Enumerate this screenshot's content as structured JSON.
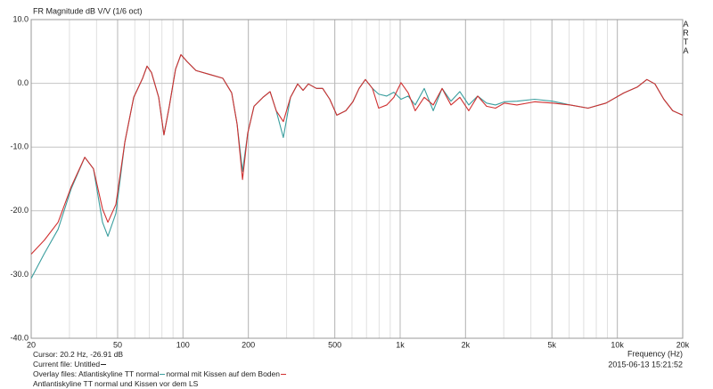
{
  "chart_data": {
    "type": "line",
    "title": "FR Magnitude dB V/V (1/6 oct)",
    "brand": "ARTA",
    "x_label": "Frequency (Hz)",
    "cursor": "Cursor: 20.2 Hz, -26.91 dB",
    "current_file": "Current file: Untitled",
    "overlay_label": "Overlay files:",
    "overlay_extra": "Antlantiskyline TT normal und Kissen vor dem LS",
    "timestamp": "2015-06-13  15:21:52",
    "log_x": true,
    "grid": true,
    "xlim": [
      20,
      20000
    ],
    "ylim": [
      -40,
      10
    ],
    "xticks": [
      20,
      50,
      100,
      200,
      500,
      {
        "value": 1000,
        "label": "1k"
      },
      {
        "value": 2000,
        "label": "2k"
      },
      {
        "value": 5000,
        "label": "5k"
      },
      {
        "value": 10000,
        "label": "10k"
      },
      {
        "value": 20000,
        "label": "20k"
      }
    ],
    "yticks": [
      {
        "value": -40,
        "label": "-40.0"
      },
      {
        "value": -30,
        "label": "-30.0"
      },
      {
        "value": -20,
        "label": "-20.0"
      },
      {
        "value": -10,
        "label": "-10.0"
      },
      {
        "value": 0,
        "label": "0.0"
      },
      {
        "value": 10,
        "label": "10.0"
      }
    ],
    "x": [
      20,
      23.0,
      26.6,
      30.6,
      35.3,
      38.7,
      42.6,
      45.1,
      49.1,
      54.0,
      59.3,
      65.2,
      68.3,
      71.6,
      77.3,
      81.7,
      86.5,
      92.4,
      97.8,
      104.5,
      114.8,
      132.4,
      152.5,
      167.6,
      177.5,
      188,
      198.7,
      212.4,
      233.5,
      251.8,
      268.7,
      289.8,
      312.6,
      337.3,
      357.3,
      377.8,
      411.6,
      439.6,
      474.2,
      510.9,
      562.1,
      605.8,
      647.1,
      691.6,
      745.4,
      796.2,
      867.2,
      935.3,
      1009,
      1089,
      1173,
      1291,
      1420,
      1560,
      1714,
      1883,
      2070,
      2275,
      2500,
      2748,
      3020,
      3447,
      4160,
      5024,
      6072,
      7333,
      8869,
      10716,
      12334,
      13680,
      14900,
      16370,
      17990,
      20000
    ],
    "series": [
      {
        "name": "Atlantiskyline TT normal",
        "color": "#3a9e9e",
        "values": [
          -30.6,
          -26.7,
          -22.9,
          -16.5,
          -11.6,
          -13.4,
          -21.8,
          -24.0,
          -20.4,
          -9.2,
          -2.2,
          0.8,
          2.7,
          1.7,
          -2.2,
          -8.1,
          -3.6,
          2.2,
          4.5,
          3.4,
          2.0,
          1.4,
          0.8,
          -1.5,
          -6.4,
          -13.8,
          -7.8,
          -3.6,
          -2.2,
          -1.3,
          -4.3,
          -8.5,
          -2.2,
          -0.1,
          -1.1,
          -0.1,
          -0.8,
          -0.8,
          -2.5,
          -5.0,
          -4.3,
          -2.9,
          -0.8,
          0.6,
          -0.8,
          -1.7,
          -2.0,
          -1.4,
          -2.5,
          -2.0,
          -3.4,
          -0.8,
          -4.3,
          -0.8,
          -2.8,
          -1.3,
          -3.4,
          -2.0,
          -3.1,
          -3.4,
          -2.9,
          -2.8,
          -2.5,
          -2.8,
          -3.4,
          -3.9,
          -3.1,
          -1.5,
          -0.6,
          0.6,
          -0.1,
          -2.5,
          -4.3,
          -5.0
        ]
      },
      {
        "name": "normal mit Kissen auf dem Boden",
        "color": "#d03030",
        "values": [
          -26.8,
          -24.6,
          -21.8,
          -16.2,
          -11.6,
          -13.4,
          -19.7,
          -21.8,
          -19.0,
          -9.2,
          -2.2,
          0.8,
          2.7,
          1.7,
          -2.2,
          -8.1,
          -3.6,
          2.2,
          4.5,
          3.4,
          2.0,
          1.4,
          0.8,
          -1.5,
          -6.4,
          -15.1,
          -7.8,
          -3.6,
          -2.2,
          -1.3,
          -4.3,
          -6.0,
          -2.2,
          -0.1,
          -1.1,
          -0.1,
          -0.8,
          -0.8,
          -2.5,
          -5.0,
          -4.3,
          -2.9,
          -0.8,
          0.6,
          -0.8,
          -3.9,
          -3.4,
          -2.2,
          0.1,
          -1.5,
          -4.3,
          -2.2,
          -3.4,
          -0.8,
          -3.4,
          -2.2,
          -4.3,
          -2.0,
          -3.6,
          -3.9,
          -3.1,
          -3.4,
          -2.9,
          -3.1,
          -3.4,
          -3.9,
          -3.1,
          -1.5,
          -0.6,
          0.6,
          -0.1,
          -2.5,
          -4.3,
          -5.0
        ]
      }
    ]
  }
}
